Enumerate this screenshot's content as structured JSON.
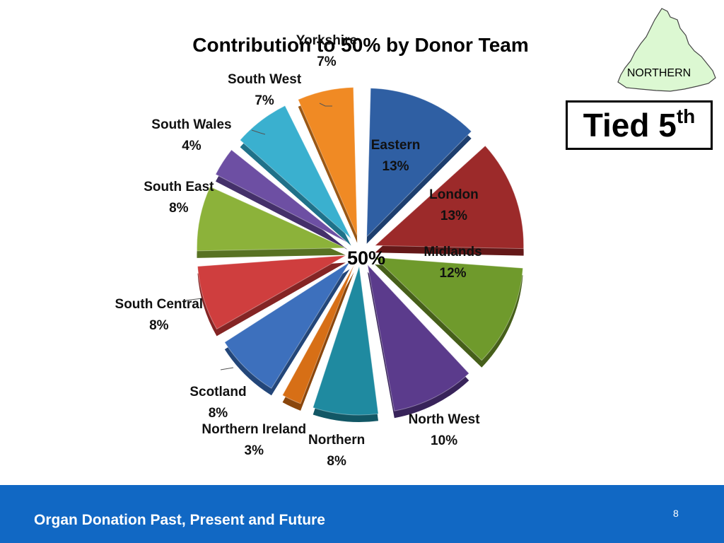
{
  "slide": {
    "center_label": "50%",
    "region_name": "NORTHERN",
    "rank_main": "Tied 5",
    "rank_suffix": "th",
    "footer_title": "Organ Donation Past, Present and Future",
    "page_number": "8"
  },
  "chart_data": {
    "type": "pie",
    "title": "Contribution to 50% by Donor Team",
    "categories": [
      "Eastern",
      "London",
      "Midlands",
      "North West",
      "Northern",
      "Northern Ireland",
      "Scotland",
      "South Central",
      "South East",
      "South Wales",
      "South West",
      "Yorkshire"
    ],
    "values": [
      13,
      13,
      12,
      10,
      8,
      3,
      8,
      8,
      8,
      4,
      7,
      7
    ],
    "value_labels": [
      "13%",
      "13%",
      "12%",
      "10%",
      "8%",
      "3%",
      "8%",
      "8%",
      "8%",
      "4%",
      "7%",
      "7%"
    ],
    "unit": "%",
    "exploded": true,
    "colors": [
      "#2f5fa3",
      "#9c2a2a",
      "#6f9a2c",
      "#5b3b8c",
      "#1f8aa0",
      "#d76f16",
      "#3d70bd",
      "#cf3e3e",
      "#8cb23a",
      "#6d4fa3",
      "#3ab0cf",
      "#f08a24"
    ],
    "dark_colors": [
      "#1d3e6e",
      "#641818",
      "#465f1a",
      "#38235a",
      "#125765",
      "#8a460c",
      "#234679",
      "#842424",
      "#587223",
      "#44306a",
      "#1f7189",
      "#9a5714"
    ]
  }
}
